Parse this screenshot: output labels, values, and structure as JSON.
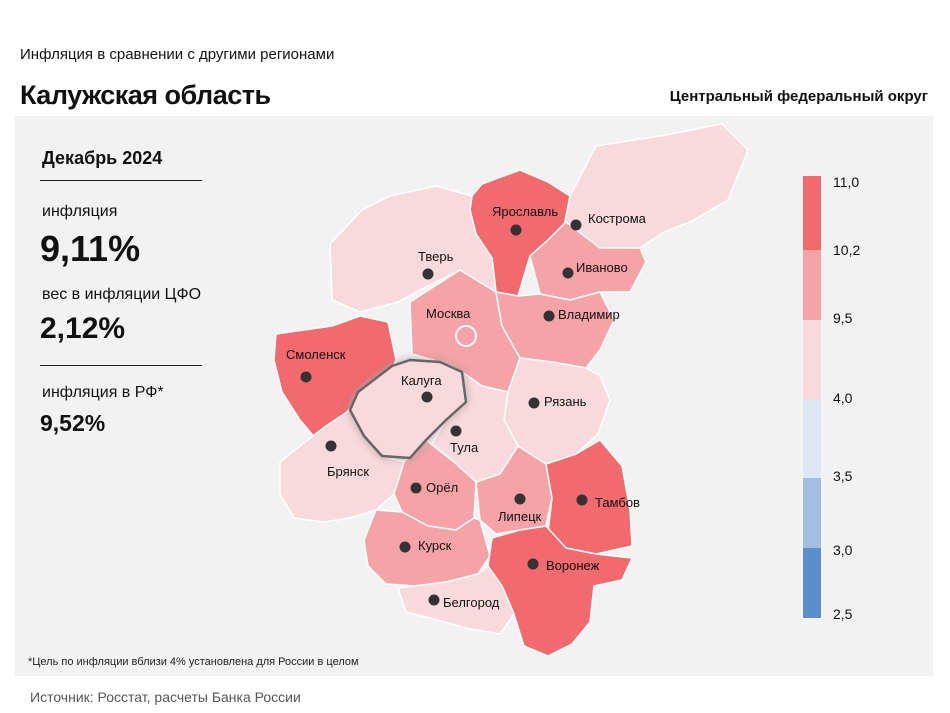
{
  "header": {
    "subtitle": "Инфляция в сравнении с другими регионами",
    "title": "Калужская область",
    "district": "Центральный федеральный округ"
  },
  "stats": {
    "period": "Декабрь 2024",
    "inflation_label": "инфляция",
    "inflation_value": "9,11%",
    "weight_label": "вес в инфляции ЦФО",
    "weight_value": "2,12%",
    "rf_label": "инфляция в РФ*",
    "rf_value": "9,52%"
  },
  "legend": {
    "ticks": [
      "11,0",
      "10,2",
      "9,5",
      "4,0",
      "3,5",
      "3,0",
      "2,5"
    ],
    "colors": [
      "#f06a6e",
      "#f5a3a6",
      "#f8dadc",
      "#dde7f3",
      "#a2bde0",
      "#5b8fcb"
    ]
  },
  "map": {
    "highlighted_region": "Калуга",
    "capital_marker": "Москва",
    "regions": [
      {
        "name": "Ярославль",
        "color": "#f06a6e"
      },
      {
        "name": "Кострома",
        "color": "#f8dadc"
      },
      {
        "name": "Тверь",
        "color": "#f8dadc"
      },
      {
        "name": "Иваново",
        "color": "#f5a3a6"
      },
      {
        "name": "Москва",
        "color": "#f5a3a6"
      },
      {
        "name": "Владимир",
        "color": "#f5a3a6"
      },
      {
        "name": "Смоленск",
        "color": "#f06a6e"
      },
      {
        "name": "Калуга",
        "color": "#f8dadc"
      },
      {
        "name": "Рязань",
        "color": "#f8dadc"
      },
      {
        "name": "Тула",
        "color": "#f8dadc"
      },
      {
        "name": "Брянск",
        "color": "#f8dadc"
      },
      {
        "name": "Орёл",
        "color": "#f5a3a6"
      },
      {
        "name": "Липецк",
        "color": "#f5a3a6"
      },
      {
        "name": "Тамбов",
        "color": "#f06a6e"
      },
      {
        "name": "Курск",
        "color": "#f5a3a6"
      },
      {
        "name": "Воронеж",
        "color": "#f06a6e"
      },
      {
        "name": "Белгород",
        "color": "#f8dadc"
      }
    ]
  },
  "footnote": "*Цель по инфляции вблизи 4% установлена для России в целом",
  "source": "Источник: Росстат, расчеты Банка России"
}
